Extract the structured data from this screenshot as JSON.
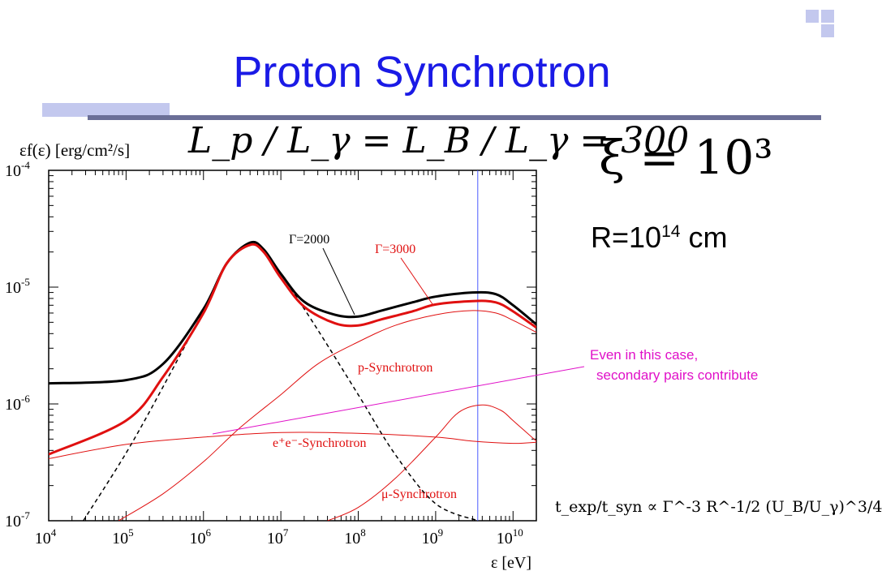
{
  "slide": {
    "title": "Proton Synchrotron",
    "eq_main": "L_p / L_γ = L_B / L_γ = 300",
    "eq_xi": "ξ = 10³",
    "radius_base": "R=10",
    "radius_exp": "14",
    "radius_unit": " cm",
    "note_line1": "Even in this case,",
    "note_line2": "secondary pairs contribute",
    "eq_texp": "t_exp/t_syn ∝ Γ^-3 R^-1/2 (U_B/U_γ)^3/4"
  },
  "colors": {
    "title": "#1a1ae6",
    "total": "#000000",
    "red": "#e01010",
    "note": "#e010c8",
    "vline": "#4a5cff"
  },
  "chart_data": {
    "type": "line",
    "x_scale": "log",
    "y_scale": "log",
    "xlim": [
      10000,
      20000000000
    ],
    "ylim": [
      1e-07,
      0.0001
    ],
    "xlabel": "ε [eV]",
    "ylabel": "εf(ε) [erg/cm²/s]",
    "x_ticks": [
      {
        "value": 10000,
        "base": "10",
        "exp": "4"
      },
      {
        "value": 100000,
        "base": "10",
        "exp": "5"
      },
      {
        "value": 1000000,
        "base": "10",
        "exp": "6"
      },
      {
        "value": 10000000,
        "base": "10",
        "exp": "7"
      },
      {
        "value": 100000000,
        "base": "10",
        "exp": "8"
      },
      {
        "value": 1000000000,
        "base": "10",
        "exp": "9"
      },
      {
        "value": 10000000000,
        "base": "10",
        "exp": "10"
      }
    ],
    "y_ticks": [
      {
        "value": 0.0001,
        "base": "10",
        "exp": "-4"
      },
      {
        "value": 1e-05,
        "base": "10",
        "exp": "-5"
      },
      {
        "value": 1e-06,
        "base": "10",
        "exp": "-6"
      },
      {
        "value": 1e-07,
        "base": "10",
        "exp": "-7"
      }
    ],
    "vertical_line_x": 3500000000,
    "series": [
      {
        "name": "Γ=2000",
        "color": "#000000",
        "style": "solid",
        "width": 3,
        "x": [
          10000,
          100000,
          300000,
          1000000,
          2000000,
          4000000,
          6000000,
          10000000,
          20000000,
          50000000,
          100000000,
          200000000,
          500000000,
          1000000000,
          3000000000,
          6000000000,
          10000000000,
          20000000000
        ],
        "y": [
          1.5e-06,
          1.6e-06,
          2.2e-06,
          6.5e-06,
          1.6e-05,
          2.4e-05,
          2.1e-05,
          1.3e-05,
          7.5e-06,
          5.8e-06,
          5.6e-06,
          6.3e-06,
          7.4e-06,
          8.3e-06,
          9e-06,
          8.7e-06,
          7e-06,
          4.8e-06
        ]
      },
      {
        "name": "Γ=3000",
        "color": "#e01010",
        "style": "solid",
        "width": 3,
        "x": [
          10000,
          100000,
          300000,
          1000000,
          2000000,
          4000000,
          6000000,
          10000000,
          20000000,
          50000000,
          100000000,
          200000000,
          500000000,
          1000000000,
          3000000000,
          6000000000,
          10000000000,
          20000000000
        ],
        "y": [
          3.7e-07,
          7.2e-07,
          1.7e-06,
          6e-06,
          1.6e-05,
          2.3e-05,
          2e-05,
          1.2e-05,
          6.8e-06,
          4.9e-06,
          4.7e-06,
          5.3e-06,
          6.2e-06,
          7.1e-06,
          7.6e-06,
          7.4e-06,
          6.2e-06,
          4.5e-06
        ]
      },
      {
        "name": "dashed",
        "color": "#000000",
        "style": "dashed",
        "width": 1.5,
        "x": [
          28000,
          100000,
          300000,
          1000000,
          2000000,
          4000000,
          6000000,
          10000000,
          30000000,
          100000000,
          300000000,
          1000000000,
          3500000000
        ],
        "y": [
          1e-07,
          3.8e-07,
          1.4e-06,
          6.3e-06,
          1.6e-05,
          2.3e-05,
          2e-05,
          1.3e-05,
          4.3e-06,
          1.2e-06,
          3.7e-07,
          1.4e-07,
          1e-07
        ]
      },
      {
        "name": "p-Synchrotron",
        "color": "#e01010",
        "style": "solid",
        "width": 1,
        "x": [
          80000,
          300000,
          1000000,
          3000000,
          10000000,
          30000000,
          100000000,
          300000000,
          1000000000,
          3000000000,
          6000000000,
          10000000000,
          20000000000
        ],
        "y": [
          1e-07,
          1.7e-07,
          3.2e-07,
          6.3e-07,
          1.2e-06,
          2.2e-06,
          3.4e-06,
          4.7e-06,
          5.8e-06,
          6.3e-06,
          6e-06,
          5.2e-06,
          4.1e-06
        ]
      },
      {
        "name": "e+e--Synchrotron",
        "color": "#e01010",
        "style": "solid",
        "width": 1,
        "x": [
          10000,
          100000,
          1000000,
          10000000,
          100000000,
          1000000000,
          3000000000,
          10000000000,
          20000000000
        ],
        "y": [
          3.4e-07,
          4.5e-07,
          5.2e-07,
          5.7e-07,
          5.6e-07,
          5.2e-07,
          4.8e-07,
          4.6e-07,
          4.7e-07
        ]
      },
      {
        "name": "μ-Synchrotron",
        "color": "#e01010",
        "style": "solid",
        "width": 1,
        "x": [
          40000000,
          100000000,
          300000000,
          1000000000,
          2000000000,
          4000000000,
          7000000000,
          10000000000,
          20000000000
        ],
        "y": [
          1e-07,
          1.3e-07,
          2.3e-07,
          5.2e-07,
          8.5e-07,
          9.8e-07,
          8.8e-07,
          7.2e-07,
          4.8e-07
        ]
      }
    ],
    "annotations": [
      {
        "text": "Γ=2000",
        "color": "#000000"
      },
      {
        "text": "Γ=3000",
        "color": "#e01010"
      },
      {
        "text": "p-Synchrotron",
        "color": "#e01010"
      },
      {
        "text": "e⁺e⁻-Synchrotron",
        "color": "#e01010"
      },
      {
        "text": "μ-Synchrotron",
        "color": "#e01010"
      }
    ]
  }
}
